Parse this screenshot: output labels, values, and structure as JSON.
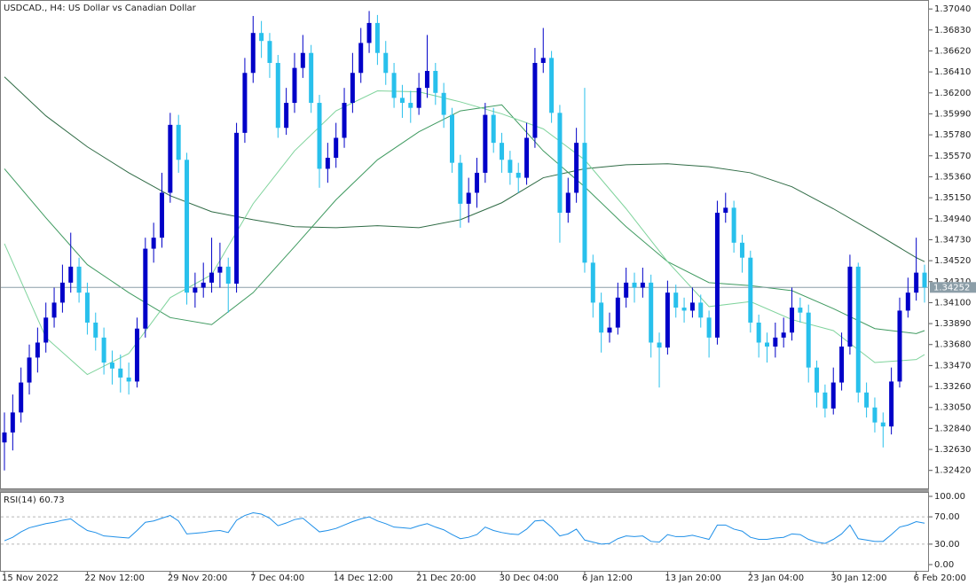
{
  "chart_data": [
    {
      "type": "candlestick",
      "title": "USDCAD., H4:  US Dollar vs Canadian Dollar",
      "up_color": "#0000c8",
      "down_color": "#28c0ec",
      "categories": [
        "15 Nov 2022",
        null,
        null,
        null,
        null,
        null,
        null,
        null,
        null,
        null,
        "22 Nov 12:00",
        null,
        null,
        null,
        null,
        null,
        null,
        null,
        null,
        null,
        "29 Nov 20:00",
        null,
        null,
        null,
        null,
        null,
        null,
        null,
        null,
        null,
        "7 Dec 04:00",
        null,
        null,
        null,
        null,
        null,
        null,
        null,
        null,
        null,
        "14 Dec 12:00",
        null,
        null,
        null,
        null,
        null,
        null,
        null,
        null,
        null,
        "21 Dec 20:00",
        null,
        null,
        null,
        null,
        null,
        null,
        null,
        null,
        null,
        "30 Dec 04:00",
        null,
        null,
        null,
        null,
        null,
        null,
        null,
        null,
        null,
        "6 Jan 12:00",
        null,
        null,
        null,
        null,
        null,
        null,
        null,
        null,
        null,
        "13 Jan 20:00",
        null,
        null,
        null,
        null,
        null,
        null,
        null,
        null,
        null,
        "23 Jan 04:00",
        null,
        null,
        null,
        null,
        null,
        null,
        null,
        null,
        null,
        "30 Jan 12:00",
        null,
        null,
        null,
        null,
        null,
        null,
        null,
        null,
        null,
        "6 Feb 20:00",
        null
      ],
      "open": [
        1.327,
        1.328,
        1.33,
        1.333,
        1.3355,
        1.337,
        1.3395,
        1.341,
        1.343,
        1.3446,
        1.342,
        1.339,
        1.3375,
        1.335,
        1.3344,
        1.3335,
        1.3331,
        1.3384,
        1.3464,
        1.3475,
        1.352,
        1.3588,
        1.3553,
        1.342,
        1.3425,
        1.343,
        1.344,
        1.3446,
        1.3429,
        1.358,
        1.364,
        1.368,
        1.3672,
        1.365,
        1.3585,
        1.361,
        1.3645,
        1.366,
        1.361,
        1.3544,
        1.3555,
        1.3575,
        1.361,
        1.364,
        1.367,
        1.369,
        1.366,
        1.364,
        1.3615,
        1.361,
        1.3605,
        1.3625,
        1.3642,
        1.362,
        1.3598,
        1.355,
        1.3509,
        1.352,
        1.354,
        1.3598,
        1.357,
        1.3553,
        1.354,
        1.3535,
        1.3575,
        1.365,
        1.3655,
        1.36,
        1.35,
        1.352,
        1.357,
        1.345,
        1.341,
        1.338,
        1.3385,
        1.3415,
        1.343,
        1.3425,
        1.343,
        1.337,
        1.3365,
        1.342,
        1.3405,
        1.3402,
        1.341,
        1.3395,
        1.3375,
        1.35,
        1.3505,
        1.347,
        1.3455,
        1.339,
        1.337,
        1.3366,
        1.3375,
        1.338,
        1.3405,
        1.34,
        1.3345,
        1.332,
        1.3304,
        1.333,
        1.3366,
        1.3446,
        1.332,
        1.3305,
        1.329,
        1.3286,
        1.3331,
        1.3402,
        1.342,
        1.344
      ],
      "high": [
        1.33,
        1.3318,
        1.3345,
        1.3368,
        1.3385,
        1.341,
        1.3425,
        1.3448,
        1.348,
        1.3455,
        1.343,
        1.34,
        1.3385,
        1.3362,
        1.3358,
        1.335,
        1.3395,
        1.3475,
        1.349,
        1.354,
        1.36,
        1.3598,
        1.356,
        1.344,
        1.345,
        1.3475,
        1.347,
        1.3455,
        1.359,
        1.3655,
        1.3697,
        1.3692,
        1.368,
        1.3658,
        1.3625,
        1.366,
        1.3678,
        1.3668,
        1.3618,
        1.357,
        1.359,
        1.3625,
        1.366,
        1.3685,
        1.3702,
        1.3698,
        1.3672,
        1.365,
        1.3628,
        1.3622,
        1.364,
        1.3678,
        1.365,
        1.363,
        1.3605,
        1.3558,
        1.3535,
        1.3555,
        1.361,
        1.3605,
        1.358,
        1.3562,
        1.355,
        1.359,
        1.3665,
        1.3685,
        1.3662,
        1.3608,
        1.3535,
        1.3585,
        1.3625,
        1.3458,
        1.342,
        1.34,
        1.343,
        1.3445,
        1.344,
        1.3445,
        1.3438,
        1.338,
        1.3432,
        1.3428,
        1.3415,
        1.3425,
        1.3418,
        1.3402,
        1.3512,
        1.352,
        1.3512,
        1.3478,
        1.3462,
        1.3398,
        1.338,
        1.339,
        1.3395,
        1.3425,
        1.3415,
        1.3408,
        1.3352,
        1.3328,
        1.3345,
        1.338,
        1.3458,
        1.345,
        1.333,
        1.3315,
        1.33,
        1.3345,
        1.3415,
        1.3435,
        1.3475,
        1.3448
      ],
      "low": [
        1.3242,
        1.3262,
        1.329,
        1.3318,
        1.334,
        1.336,
        1.3385,
        1.34,
        1.342,
        1.341,
        1.3378,
        1.3362,
        1.3338,
        1.3328,
        1.332,
        1.3318,
        1.3325,
        1.3375,
        1.345,
        1.3465,
        1.351,
        1.354,
        1.3408,
        1.3405,
        1.3415,
        1.342,
        1.3425,
        1.34,
        1.342,
        1.357,
        1.363,
        1.3655,
        1.3635,
        1.3575,
        1.3578,
        1.36,
        1.3635,
        1.36,
        1.3525,
        1.353,
        1.3545,
        1.3565,
        1.36,
        1.363,
        1.366,
        1.3648,
        1.3628,
        1.3605,
        1.3595,
        1.359,
        1.3598,
        1.3615,
        1.3608,
        1.3585,
        1.354,
        1.3485,
        1.349,
        1.3505,
        1.353,
        1.356,
        1.354,
        1.3528,
        1.352,
        1.3528,
        1.3565,
        1.364,
        1.359,
        1.347,
        1.349,
        1.351,
        1.344,
        1.3395,
        1.336,
        1.337,
        1.3378,
        1.3405,
        1.341,
        1.3415,
        1.3355,
        1.3325,
        1.3358,
        1.3395,
        1.339,
        1.3395,
        1.3385,
        1.3355,
        1.3368,
        1.349,
        1.346,
        1.344,
        1.338,
        1.3355,
        1.335,
        1.3355,
        1.3365,
        1.3372,
        1.339,
        1.333,
        1.3305,
        1.3295,
        1.3298,
        1.3322,
        1.3358,
        1.331,
        1.3295,
        1.328,
        1.3265,
        1.3278,
        1.3325,
        1.3395,
        1.3412,
        1.341
      ],
      "close": [
        1.328,
        1.33,
        1.333,
        1.3355,
        1.337,
        1.3395,
        1.341,
        1.343,
        1.3446,
        1.342,
        1.339,
        1.3375,
        1.335,
        1.3344,
        1.3335,
        1.3331,
        1.3384,
        1.3464,
        1.3475,
        1.352,
        1.3588,
        1.3553,
        1.342,
        1.3425,
        1.343,
        1.344,
        1.3446,
        1.3429,
        1.358,
        1.364,
        1.368,
        1.3672,
        1.365,
        1.3585,
        1.361,
        1.3645,
        1.366,
        1.361,
        1.3544,
        1.3555,
        1.3575,
        1.361,
        1.364,
        1.367,
        1.369,
        1.366,
        1.364,
        1.3615,
        1.361,
        1.3605,
        1.3625,
        1.3642,
        1.362,
        1.3598,
        1.355,
        1.3509,
        1.352,
        1.354,
        1.3598,
        1.357,
        1.3553,
        1.354,
        1.3535,
        1.3575,
        1.365,
        1.3655,
        1.36,
        1.35,
        1.352,
        1.357,
        1.345,
        1.341,
        1.338,
        1.3385,
        1.3415,
        1.343,
        1.3425,
        1.343,
        1.337,
        1.3365,
        1.342,
        1.3405,
        1.3402,
        1.341,
        1.3395,
        1.3375,
        1.35,
        1.3505,
        1.347,
        1.3455,
        1.339,
        1.337,
        1.3366,
        1.3375,
        1.338,
        1.3405,
        1.34,
        1.3345,
        1.332,
        1.3304,
        1.333,
        1.3366,
        1.3446,
        1.332,
        1.3305,
        1.329,
        1.3286,
        1.3331,
        1.3402,
        1.342,
        1.344,
        1.34252
      ],
      "series": [
        {
          "color": "#2f6b45",
          "x": [
            0,
            5,
            10,
            15,
            20,
            25,
            30,
            35,
            40,
            45,
            50,
            55,
            60,
            65,
            70,
            75,
            80,
            85,
            90,
            95,
            100,
            105,
            110,
            111
          ],
          "values": [
            1.3636,
            1.3597,
            1.3566,
            1.354,
            1.3517,
            1.3501,
            1.3493,
            1.3486,
            1.3485,
            1.3487,
            1.3485,
            1.3493,
            1.351,
            1.3535,
            1.3544,
            1.3548,
            1.3549,
            1.3546,
            1.354,
            1.3526,
            1.3504,
            1.348,
            1.3455,
            1.3451
          ]
        },
        {
          "color": "#3f9a60",
          "x": [
            0,
            5,
            10,
            15,
            20,
            25,
            30,
            35,
            40,
            45,
            50,
            55,
            60,
            65,
            70,
            75,
            80,
            85,
            90,
            95,
            100,
            105,
            110,
            111
          ],
          "values": [
            1.3544,
            1.3495,
            1.3448,
            1.342,
            1.3395,
            1.3388,
            1.342,
            1.3466,
            1.3513,
            1.3553,
            1.3581,
            1.3602,
            1.3608,
            1.3562,
            1.3526,
            1.3486,
            1.3451,
            1.343,
            1.3427,
            1.3422,
            1.3404,
            1.3384,
            1.3379,
            1.3382
          ]
        },
        {
          "color": "#7fd39c",
          "x": [
            0,
            5,
            10,
            15,
            20,
            25,
            30,
            35,
            40,
            45,
            50,
            55,
            60,
            65,
            70,
            75,
            80,
            85,
            90,
            95,
            100,
            105,
            110,
            111
          ],
          "values": [
            1.3469,
            1.3375,
            1.3338,
            1.3359,
            1.3415,
            1.3438,
            1.3509,
            1.3562,
            1.3602,
            1.3622,
            1.3621,
            1.3611,
            1.3599,
            1.3584,
            1.3553,
            1.3504,
            1.3451,
            1.3406,
            1.3411,
            1.3393,
            1.3382,
            1.335,
            1.3353,
            1.3358
          ]
        }
      ],
      "current_price": 1.34252,
      "current_color": "#8c9ea8",
      "ylim": [
        1.3224,
        1.3713
      ],
      "yticks": [
        {
          "value": 1.3704,
          "label": "1.37040"
        },
        {
          "value": 1.3683,
          "label": "1.36830"
        },
        {
          "value": 1.3662,
          "label": "1.36620"
        },
        {
          "value": 1.3641,
          "label": "1.36410"
        },
        {
          "value": 1.362,
          "label": "1.36200"
        },
        {
          "value": 1.3599,
          "label": "1.35990"
        },
        {
          "value": 1.3578,
          "label": "1.35780"
        },
        {
          "value": 1.3557,
          "label": "1.35570"
        },
        {
          "value": 1.3536,
          "label": "1.35360"
        },
        {
          "value": 1.3515,
          "label": "1.35150"
        },
        {
          "value": 1.3494,
          "label": "1.34940"
        },
        {
          "value": 1.3473,
          "label": "1.34730"
        },
        {
          "value": 1.3452,
          "label": "1.34520"
        },
        {
          "value": 1.3431,
          "label": "1.34310"
        },
        {
          "value": 1.341,
          "label": "1.34100"
        },
        {
          "value": 1.3389,
          "label": "1.33890"
        },
        {
          "value": 1.3368,
          "label": "1.33680"
        },
        {
          "value": 1.3347,
          "label": "1.33470"
        },
        {
          "value": 1.3326,
          "label": "1.33260"
        },
        {
          "value": 1.3305,
          "label": "1.33050"
        },
        {
          "value": 1.3284,
          "label": "1.32840"
        },
        {
          "value": 1.3263,
          "label": "1.32630"
        },
        {
          "value": 1.3242,
          "label": "1.32420"
        }
      ],
      "grid": false
    },
    {
      "type": "line",
      "title": "RSI(14) 60.73",
      "color": "#1e8fe8",
      "values": [
        35,
        40,
        48,
        54,
        57,
        60,
        62,
        65,
        67,
        58,
        50,
        47,
        42,
        41,
        40,
        39,
        50,
        62,
        64,
        68,
        72,
        64,
        45,
        46,
        47,
        49,
        50,
        47,
        65,
        72,
        76,
        74,
        68,
        57,
        61,
        66,
        68,
        58,
        48,
        50,
        53,
        58,
        63,
        67,
        70,
        64,
        60,
        55,
        54,
        53,
        57,
        60,
        55,
        51,
        44,
        38,
        40,
        44,
        55,
        50,
        47,
        45,
        44,
        52,
        64,
        65,
        55,
        42,
        45,
        52,
        36,
        33,
        30,
        31,
        38,
        42,
        41,
        42,
        34,
        33,
        44,
        41,
        41,
        43,
        40,
        37,
        58,
        58,
        52,
        49,
        40,
        37,
        37,
        39,
        40,
        45,
        44,
        37,
        33,
        31,
        37,
        45,
        58,
        38,
        36,
        34,
        34,
        44,
        55,
        58,
        63,
        60.73
      ],
      "ylim": [
        0,
        100
      ],
      "yticks": [
        {
          "value": 100,
          "label": "100.00"
        },
        {
          "value": 70,
          "label": "70.00"
        },
        {
          "value": 30,
          "label": "30.00"
        },
        {
          "value": 0,
          "label": "0.00"
        }
      ],
      "grid": true
    }
  ]
}
